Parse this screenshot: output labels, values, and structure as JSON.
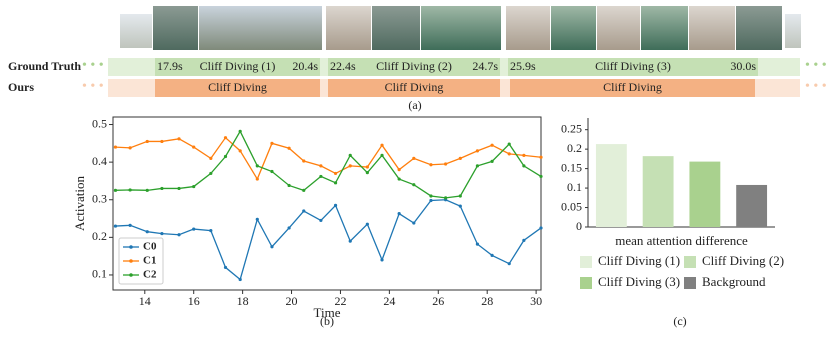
{
  "panel_a": {
    "ground_truth_label": "Ground Truth",
    "ours_label": "Ours",
    "caption": "(a)",
    "ground_truth": [
      {
        "start": "17.9s",
        "label": "Cliff Diving (1)",
        "end": "20.4s"
      },
      {
        "start": "22.4s",
        "label": "Cliff Diving (2)",
        "end": "24.7s"
      },
      {
        "start": "25.9s",
        "label": "Cliff Diving (3)",
        "end": "30.0s"
      }
    ],
    "ours": [
      "Cliff Diving",
      "Cliff Diving",
      "Cliff Diving"
    ]
  },
  "chart_data": [
    {
      "type": "line",
      "caption": "(b)",
      "x_label": "Time",
      "y_label": "Activation",
      "x": [
        12.8,
        13.4,
        14.1,
        14.7,
        15.4,
        16.0,
        16.7,
        17.3,
        17.9,
        18.6,
        19.2,
        19.9,
        20.5,
        21.2,
        21.8,
        22.4,
        23.1,
        23.7,
        24.4,
        25.0,
        25.7,
        26.3,
        26.9,
        27.6,
        28.2,
        28.9,
        29.5,
        30.2
      ],
      "series": [
        {
          "name": "C0",
          "color": "#1f77b4",
          "values": [
            0.23,
            0.232,
            0.215,
            0.21,
            0.207,
            0.222,
            0.218,
            0.12,
            0.088,
            0.248,
            0.175,
            0.225,
            0.27,
            0.245,
            0.285,
            0.19,
            0.235,
            0.14,
            0.263,
            0.238,
            0.298,
            0.3,
            0.283,
            0.182,
            0.152,
            0.13,
            0.192,
            0.225
          ]
        },
        {
          "name": "C1",
          "color": "#ff7f0e",
          "values": [
            0.44,
            0.438,
            0.455,
            0.455,
            0.462,
            0.44,
            0.41,
            0.465,
            0.43,
            0.355,
            0.45,
            0.437,
            0.403,
            0.39,
            0.37,
            0.39,
            0.387,
            0.445,
            0.38,
            0.41,
            0.393,
            0.395,
            0.41,
            0.43,
            0.445,
            0.422,
            0.418,
            0.413
          ]
        },
        {
          "name": "C2",
          "color": "#2ca02c",
          "values": [
            0.325,
            0.326,
            0.325,
            0.33,
            0.33,
            0.335,
            0.37,
            0.415,
            0.482,
            0.39,
            0.375,
            0.338,
            0.325,
            0.362,
            0.345,
            0.418,
            0.372,
            0.418,
            0.355,
            0.34,
            0.31,
            0.305,
            0.31,
            0.39,
            0.402,
            0.448,
            0.39,
            0.362
          ]
        }
      ],
      "xlim": [
        12.7,
        30.2
      ],
      "xticks": [
        14,
        16,
        18,
        20,
        22,
        24,
        26,
        28,
        30
      ],
      "ylim": [
        0.06,
        0.52
      ],
      "yticks": [
        0.1,
        0.2,
        0.3,
        0.4,
        0.5
      ],
      "legend": "lower left"
    },
    {
      "type": "bar",
      "caption": "(c)",
      "x_label": "mean attention difference",
      "categories": [
        "Cliff Diving (1)",
        "Cliff Diving (2)",
        "Cliff Diving (3)",
        "Background"
      ],
      "values": [
        0.213,
        0.182,
        0.168,
        0.108
      ],
      "colors": [
        "#e2efd9",
        "#c5e0b4",
        "#a9d18e",
        "#808080"
      ],
      "ylim": [
        0,
        0.28
      ],
      "yticks": [
        0,
        0.05,
        0.1,
        0.15,
        0.2,
        0.25
      ]
    }
  ]
}
